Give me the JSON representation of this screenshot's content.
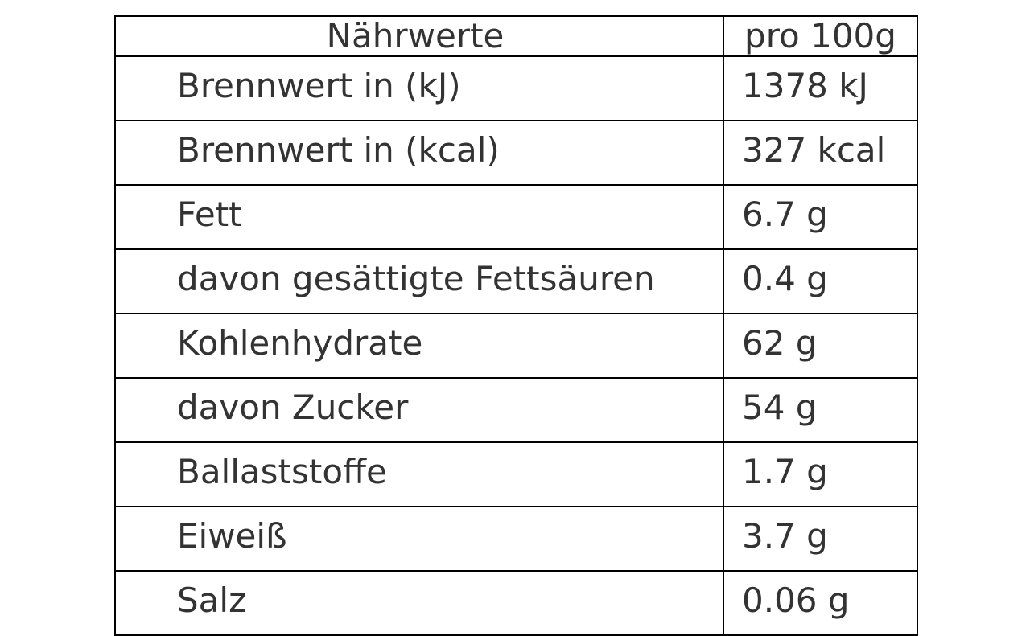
{
  "table": {
    "headers": {
      "name": "Nährwerte",
      "value": "pro 100g"
    },
    "rows": [
      {
        "name": "Brennwert in (kJ)",
        "value": "1378 kJ"
      },
      {
        "name": "Brennwert in (kcal)",
        "value": "327 kcal"
      },
      {
        "name": "Fett",
        "value": "6.7 g"
      },
      {
        "name": "davon gesättigte Fettsäuren",
        "value": "0.4 g"
      },
      {
        "name": "Kohlenhydrate",
        "value": "62 g"
      },
      {
        "name": "davon Zucker",
        "value": "54 g"
      },
      {
        "name": "Ballaststoffe",
        "value": "1.7 g"
      },
      {
        "name": "Eiweiß",
        "value": "3.7 g"
      },
      {
        "name": "Salz",
        "value": "0.06 g"
      }
    ]
  }
}
